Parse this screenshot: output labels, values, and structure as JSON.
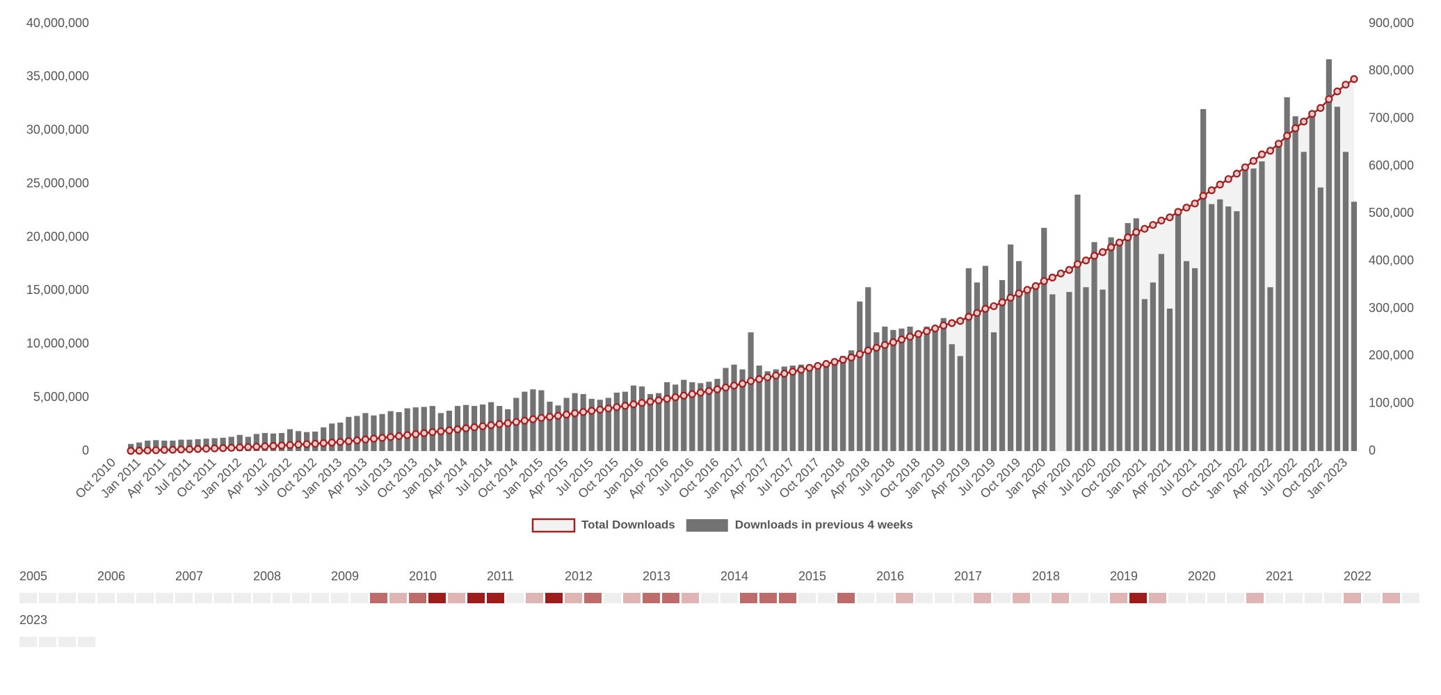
{
  "chart_data": {
    "type": "combo",
    "categories": [
      "Oct 2010",
      null,
      null,
      "Jan 2011",
      null,
      null,
      "Apr 2011",
      null,
      null,
      "Jul 2011",
      null,
      null,
      "Oct 2011",
      null,
      null,
      "Jan 2012",
      null,
      null,
      "Apr 2012",
      null,
      null,
      "Jul 2012",
      null,
      null,
      "Oct 2012",
      null,
      null,
      "Jan 2013",
      null,
      null,
      "Apr 2013",
      null,
      null,
      "Jul 2013",
      null,
      null,
      "Oct 2013",
      null,
      null,
      "Jan 2014",
      null,
      null,
      "Apr 2014",
      null,
      null,
      "Jul 2014",
      null,
      null,
      "Oct 2014",
      null,
      null,
      "Jan 2015",
      null,
      null,
      "Apr 2015",
      null,
      null,
      "Jul 2015",
      null,
      null,
      "Oct 2015",
      null,
      null,
      "Jan 2016",
      null,
      null,
      "Apr 2016",
      null,
      null,
      "Jul 2016",
      null,
      null,
      "Oct 2016",
      null,
      null,
      "Jan 2017",
      null,
      null,
      "Apr 2017",
      null,
      null,
      "Jul 2017",
      null,
      null,
      "Oct 2017",
      null,
      null,
      "Jan 2018",
      null,
      null,
      "Apr 2018",
      null,
      null,
      "Jul 2018",
      null,
      null,
      "Oct 2018",
      null,
      null,
      "Jan 2019",
      null,
      null,
      "Apr 2019",
      null,
      null,
      "Jul 2019",
      null,
      null,
      "Oct 2019",
      null,
      null,
      "Jan 2020",
      null,
      null,
      "Apr 2020",
      null,
      null,
      "Jul 2020",
      null,
      null,
      "Oct 2020",
      null,
      null,
      "Jan 2021",
      null,
      null,
      "Apr 2021",
      null,
      null,
      "Jul 2021",
      null,
      null,
      "Oct 2021",
      null,
      null,
      "Jan 2022",
      null,
      null,
      "Apr 2022",
      null,
      null,
      "Jul 2022",
      null,
      null,
      "Oct 2022",
      null,
      null,
      "Jan 2023",
      null
    ],
    "series": [
      {
        "name": "Total Downloads",
        "type": "line",
        "color": "#a11f1f",
        "fill": "#f2f2f2",
        "values": [
          null,
          null,
          15000,
          33000,
          55000,
          78000,
          100000,
          122000,
          146000,
          170000,
          195000,
          221000,
          248000,
          276000,
          306000,
          340000,
          370000,
          406000,
          444000,
          481000,
          519000,
          565000,
          607000,
          647000,
          688000,
          738000,
          796000,
          856000,
          928000,
          1002000,
          1082000,
          1157000,
          1235000,
          1319000,
          1401000,
          1491000,
          1583000,
          1676000,
          1771000,
          1851000,
          1936000,
          2031000,
          2128000,
          2223000,
          2321000,
          2424000,
          2519000,
          2607000,
          2719000,
          2844000,
          2974000,
          3102000,
          3206000,
          3302000,
          3414000,
          3536000,
          3656000,
          3766000,
          3874000,
          3986000,
          4109000,
          4234000,
          4372000,
          4508000,
          4628000,
          4750000,
          4895000,
          5035000,
          5185000,
          5330000,
          5473000,
          5619000,
          5771000,
          5946000,
          6128000,
          6300000,
          6550000,
          6730000,
          6898000,
          7070000,
          7248000,
          7428000,
          7610000,
          7788000,
          7973000,
          8153000,
          8343000,
          8543000,
          8755000,
          9070000,
          9415000,
          9665000,
          9927000,
          10182000,
          10440000,
          10702000,
          10952000,
          11214000,
          11472000,
          11752000,
          11977000,
          12177000,
          12562000,
          12917000,
          13307000,
          13557000,
          13917000,
          14352000,
          14752000,
          15087000,
          15437000,
          15907000,
          16237000,
          16617000,
          16952000,
          17492000,
          17837000,
          18277000,
          18617000,
          19067000,
          19512000,
          19992000,
          20482000,
          20802000,
          21157000,
          21572000,
          21872000,
          22382000,
          22782000,
          23167000,
          23887000,
          24407000,
          24937000,
          25452000,
          25957000,
          26557000,
          27152000,
          27762000,
          28107000,
          28757000,
          29502000,
          30207000,
          30837000,
          31552000,
          32107000,
          32932000,
          33657000,
          34287000,
          34812000
        ]
      },
      {
        "name": "Downloads in previous 4 weeks",
        "type": "bar",
        "axis": "y2",
        "color": "#737373",
        "values": [
          null,
          null,
          15000,
          18000,
          22000,
          23000,
          22000,
          22000,
          24000,
          24000,
          25000,
          26000,
          27000,
          28000,
          30000,
          34000,
          30000,
          36000,
          38000,
          37000,
          38000,
          46000,
          42000,
          40000,
          41000,
          50000,
          58000,
          60000,
          72000,
          74000,
          80000,
          75000,
          78000,
          84000,
          82000,
          90000,
          92000,
          93000,
          95000,
          80000,
          85000,
          95000,
          97000,
          95000,
          98000,
          103000,
          95000,
          88000,
          112000,
          125000,
          130000,
          128000,
          104000,
          96000,
          112000,
          122000,
          120000,
          110000,
          108000,
          112000,
          123000,
          125000,
          138000,
          136000,
          120000,
          122000,
          145000,
          140000,
          150000,
          145000,
          143000,
          146000,
          152000,
          175000,
          182000,
          172000,
          250000,
          180000,
          168000,
          172000,
          178000,
          180000,
          182000,
          178000,
          185000,
          180000,
          190000,
          200000,
          212000,
          315000,
          345000,
          250000,
          262000,
          255000,
          258000,
          262000,
          250000,
          262000,
          258000,
          280000,
          225000,
          200000,
          385000,
          355000,
          390000,
          250000,
          360000,
          435000,
          400000,
          335000,
          350000,
          470000,
          330000,
          null,
          335000,
          540000,
          345000,
          440000,
          340000,
          450000,
          445000,
          480000,
          490000,
          320000,
          355000,
          415000,
          300000,
          510000,
          400000,
          385000,
          720000,
          520000,
          530000,
          515000,
          505000,
          600000,
          595000,
          610000,
          345000,
          650000,
          745000,
          705000,
          630000,
          715000,
          555000,
          825000,
          725000,
          630000,
          525000
        ]
      }
    ],
    "ylim": [
      0,
      40000000
    ],
    "yticks": [
      0,
      {
        "value": 5000000,
        "label": "5,000,000"
      },
      {
        "value": 10000000,
        "label": "10,000,000"
      },
      {
        "value": 15000000,
        "label": "15,000,000"
      },
      {
        "value": 20000000,
        "label": "20,000,000"
      },
      {
        "value": 25000000,
        "label": "25,000,000"
      },
      {
        "value": 30000000,
        "label": "30,000,000"
      },
      {
        "value": 35000000,
        "label": "35,000,000"
      },
      {
        "value": 40000000,
        "label": "40,000,000"
      }
    ],
    "y2lim": [
      0,
      900000
    ],
    "y2ticks": [
      0,
      {
        "value": 100000,
        "label": "100,000"
      },
      {
        "value": 200000,
        "label": "200,000"
      },
      {
        "value": 300000,
        "label": "300,000"
      },
      {
        "value": 400000,
        "label": "400,000"
      },
      {
        "value": 500000,
        "label": "500,000"
      },
      {
        "value": 600000,
        "label": "600,000"
      },
      {
        "value": 700000,
        "label": "700,000"
      },
      {
        "value": 800000,
        "label": "800,000"
      },
      {
        "value": 900000,
        "label": "900,000"
      }
    ],
    "grid": false,
    "legend": "bottom"
  },
  "calendar": {
    "colors": [
      "#eeeeee",
      "#deb4b4",
      "#bd6b6b",
      "#9e1c1c"
    ],
    "years": [
      {
        "year": 2005,
        "levels": [
          0,
          0,
          0,
          0
        ]
      },
      {
        "year": 2006,
        "levels": [
          0,
          0,
          0,
          0
        ]
      },
      {
        "year": 2007,
        "levels": [
          0,
          0,
          0,
          0
        ]
      },
      {
        "year": 2008,
        "levels": [
          0,
          0,
          0,
          0
        ]
      },
      {
        "year": 2009,
        "levels": [
          0,
          0,
          2,
          1
        ]
      },
      {
        "year": 2010,
        "levels": [
          2,
          3,
          1,
          3
        ]
      },
      {
        "year": 2011,
        "levels": [
          3,
          0,
          1,
          3
        ]
      },
      {
        "year": 2012,
        "levels": [
          1,
          2,
          0,
          1
        ]
      },
      {
        "year": 2013,
        "levels": [
          2,
          2,
          1,
          0
        ]
      },
      {
        "year": 2014,
        "levels": [
          0,
          2,
          2,
          2
        ]
      },
      {
        "year": 2015,
        "levels": [
          0,
          0,
          2,
          0
        ]
      },
      {
        "year": 2016,
        "levels": [
          0,
          1,
          0,
          0
        ]
      },
      {
        "year": 2017,
        "levels": [
          0,
          1,
          0,
          1
        ]
      },
      {
        "year": 2018,
        "levels": [
          0,
          1,
          0,
          0
        ]
      },
      {
        "year": 2019,
        "levels": [
          1,
          3,
          1,
          0
        ]
      },
      {
        "year": 2020,
        "levels": [
          0,
          0,
          0,
          1
        ]
      },
      {
        "year": 2021,
        "levels": [
          0,
          0,
          0,
          0
        ]
      },
      {
        "year": 2022,
        "levels": [
          1,
          0,
          1,
          0
        ]
      },
      {
        "year": 2023,
        "levels": [
          0,
          0,
          0,
          0
        ]
      }
    ]
  }
}
